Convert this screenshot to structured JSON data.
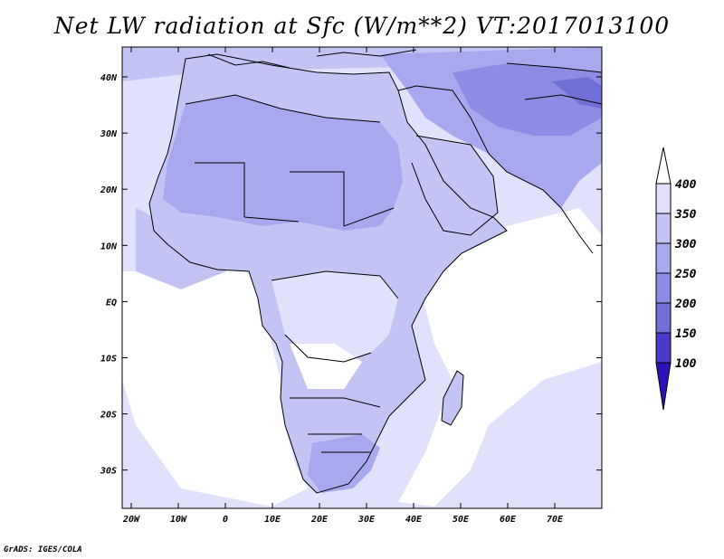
{
  "title": "Net LW radiation at Sfc (W/m**2) VT:2017013100",
  "credit": "GrADS: IGES/COLA",
  "colors": {
    "ocean_white": "#ffffff",
    "lev_350_400": "#e1e1fb",
    "lev_300_350": "#c4c4f4",
    "lev_250_300": "#a8a8ee",
    "lev_200_250": "#8c8ce4",
    "lev_150_200": "#6f6fd7",
    "lev_100_150": "#4b3bc8",
    "lev_lt_100": "#3010b8",
    "border": "#000000"
  },
  "map": {
    "lat_labels": [
      "40N",
      "30N",
      "20N",
      "10N",
      "EQ",
      "10S",
      "20S",
      "30S"
    ],
    "lon_labels": [
      "20W",
      "10W",
      "0",
      "10E",
      "20E",
      "30E",
      "40E",
      "50E",
      "60E",
      "70E"
    ]
  },
  "colorbar": {
    "levels": [
      "400",
      "350",
      "300",
      "250",
      "200",
      "150",
      "100"
    ]
  }
}
